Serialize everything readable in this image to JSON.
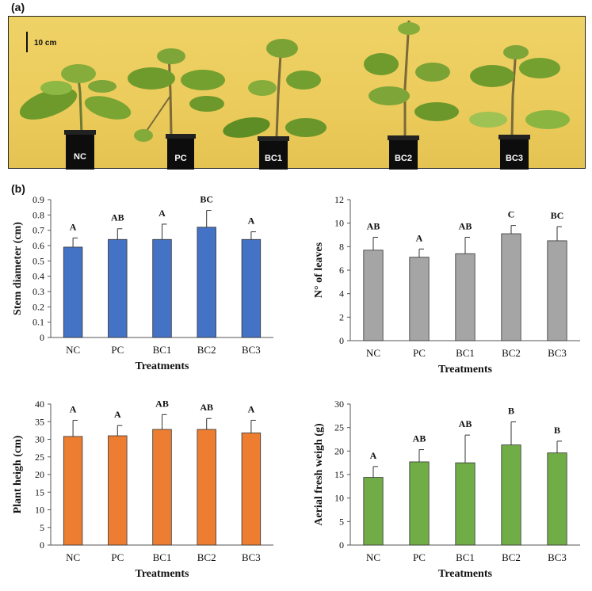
{
  "figure": {
    "panel_a_label": "(a)",
    "panel_b_label": "(b)",
    "scale_label": "10 cm",
    "pot_labels": [
      "NC",
      "PC",
      "BC1",
      "BC2",
      "BC3"
    ]
  },
  "chart_data": [
    {
      "type": "bar",
      "id": "stem",
      "categories": [
        "NC",
        "PC",
        "BC1",
        "BC2",
        "BC3"
      ],
      "values": [
        0.59,
        0.64,
        0.64,
        0.72,
        0.64
      ],
      "errors": [
        0.06,
        0.07,
        0.1,
        0.11,
        0.05
      ],
      "significance": [
        "A",
        "AB",
        "A",
        "BC",
        "A"
      ],
      "xlabel": "Treatments",
      "ylabel": "Stem diameter (cm)",
      "ylim": [
        0,
        0.9
      ],
      "yticks": [
        "0",
        "0.1",
        "0.2",
        "0.3",
        "0.4",
        "0.5",
        "0.6",
        "0.7",
        "0.8",
        "0.9"
      ],
      "color": "#4472c4"
    },
    {
      "type": "bar",
      "id": "leaves",
      "categories": [
        "NC",
        "PC",
        "BC1",
        "BC2",
        "BC3"
      ],
      "values": [
        7.7,
        7.1,
        7.4,
        9.1,
        8.5
      ],
      "errors": [
        1.1,
        0.7,
        1.4,
        0.7,
        1.2
      ],
      "significance": [
        "AB",
        "A",
        "AB",
        "C",
        "BC"
      ],
      "xlabel": "Treatments",
      "ylabel": "N° of leaves",
      "ylim": [
        0,
        12
      ],
      "yticks": [
        "0",
        "2",
        "4",
        "6",
        "8",
        "10",
        "12"
      ],
      "color": "#a5a5a5"
    },
    {
      "type": "bar",
      "id": "height",
      "categories": [
        "NC",
        "PC",
        "BC1",
        "BC2",
        "BC3"
      ],
      "values": [
        30.8,
        31.0,
        32.8,
        32.8,
        31.8
      ],
      "errors": [
        4.6,
        2.9,
        4.2,
        3.1,
        3.6
      ],
      "significance": [
        "A",
        "A",
        "AB",
        "AB",
        "A"
      ],
      "xlabel": "Treatments",
      "ylabel": "Plant heigh (cm)",
      "ylim": [
        0,
        40
      ],
      "yticks": [
        "0",
        "5",
        "10",
        "15",
        "20",
        "25",
        "30",
        "35",
        "40"
      ],
      "color": "#ed7d31"
    },
    {
      "type": "bar",
      "id": "weight",
      "categories": [
        "NC",
        "PC",
        "BC1",
        "BC2",
        "BC3"
      ],
      "values": [
        14.4,
        17.7,
        17.5,
        21.3,
        19.6
      ],
      "errors": [
        2.3,
        2.6,
        5.9,
        4.9,
        2.5
      ],
      "significance": [
        "A",
        "AB",
        "AB",
        "B",
        "B"
      ],
      "xlabel": "Treatments",
      "ylabel": "Aerial fresh weigh (g)",
      "ylim": [
        0,
        30
      ],
      "yticks": [
        "0",
        "5",
        "10",
        "15",
        "20",
        "25",
        "30"
      ],
      "color": "#70ad47"
    }
  ]
}
